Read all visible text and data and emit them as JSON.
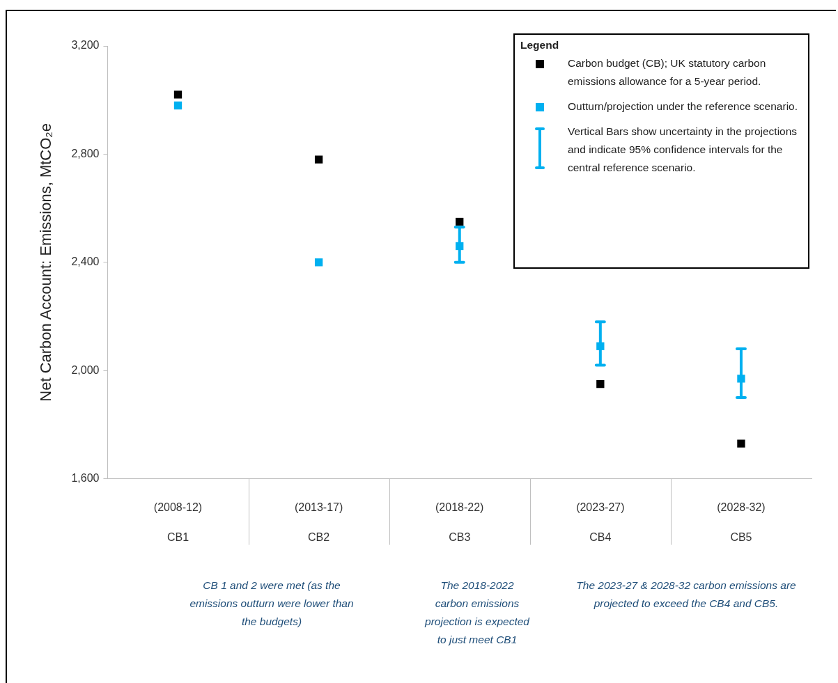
{
  "chart_data": {
    "type": "scatter",
    "ylabel": "Net Carbon Account: Emissions, MtCO₂e",
    "legend_title": "Legend",
    "categories": [
      "(2008-12)\nCB1",
      "(2013-17)\nCB2",
      "(2018-22)\nCB3",
      "(2023-27)\nCB4",
      "(2028-32)\nCB5"
    ],
    "series": [
      {
        "name": "Carbon budget (CB); UK statutory carbon emissions allowance for a 5-year period.",
        "color": "#000000",
        "values": [
          3020,
          2780,
          2550,
          1950,
          1730
        ]
      },
      {
        "name": "Outturn/projection under the reference scenario.",
        "color": "#00b0f0",
        "values": [
          2980,
          2400,
          2460,
          2090,
          1970
        ],
        "errors": [
          null,
          null,
          [
            2400,
            2530
          ],
          [
            2020,
            2180
          ],
          [
            1900,
            2080
          ]
        ]
      }
    ],
    "ylim": [
      1600,
      3200
    ],
    "yticks": [
      {
        "value": 1600,
        "label": "1,600"
      },
      {
        "value": 2000,
        "label": "2,000"
      },
      {
        "value": 2400,
        "label": "2,400"
      },
      {
        "value": 2800,
        "label": "2,800"
      },
      {
        "value": 3200,
        "label": "3,200"
      }
    ],
    "grid": false,
    "legend": "top right",
    "marker": "square",
    "annotations": [
      "Vertical Bars show uncertainty in the projections and indicate 95% confidence intervals for the central reference scenario.",
      "CB 1 and 2 were met (as the emissions outturn were lower than the budgets)",
      "The 2018-2022 carbon emissions projection is expected to just meet CB1",
      "The 2023-27 & 2028-32 carbon emissions are projected to exceed the CB4 and CB5."
    ]
  }
}
